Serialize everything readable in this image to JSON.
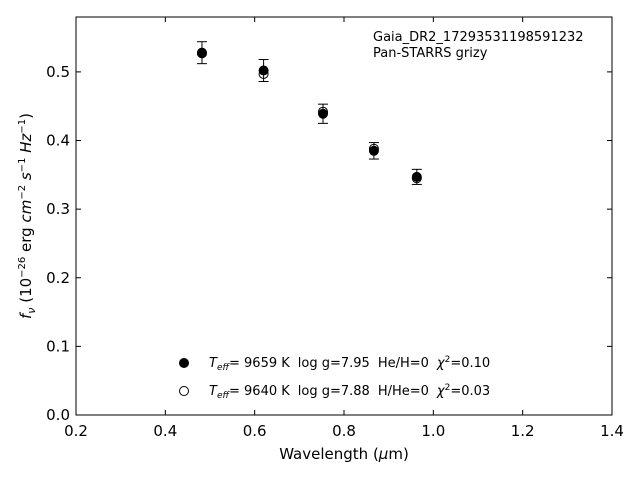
{
  "chart_data": {
    "type": "scatter",
    "title": "",
    "xlabel": "Wavelength (μm)",
    "ylabel": "f_ν (10^-26 erg cm^-2 s^-1 Hz^-1)",
    "xlim": [
      0.2,
      1.4
    ],
    "ylim": [
      0.0,
      0.58
    ],
    "xticks": [
      0.2,
      0.4,
      0.6,
      0.8,
      1.0,
      1.2,
      1.4
    ],
    "xtick_labels": [
      "0.2",
      "0.4",
      "0.6",
      "0.8",
      "1.0",
      "1.2",
      "1.4"
    ],
    "yticks": [
      0.0,
      0.1,
      0.2,
      0.3,
      0.4,
      0.5
    ],
    "ytick_labels": [
      "0.0",
      "0.1",
      "0.2",
      "0.3",
      "0.4",
      "0.5"
    ],
    "grid": false,
    "annotation": [
      "Gaia_DR2_17293531198591232",
      "Pan-STARRS grizy"
    ],
    "legend_position": "lower-center",
    "series": [
      {
        "marker": "filled-circle",
        "color": "#000000",
        "legend": {
          "teff": "9659 K",
          "logg": "log g=7.95",
          "comp": "He/H=0",
          "chi2": "=0.10"
        },
        "points": [
          {
            "x": 0.482,
            "y": 0.528,
            "err": 0.016
          },
          {
            "x": 0.62,
            "y": 0.502,
            "err": 0.016
          },
          {
            "x": 0.753,
            "y": 0.439,
            "err": 0.014
          },
          {
            "x": 0.867,
            "y": 0.385,
            "err": 0.012
          },
          {
            "x": 0.963,
            "y": 0.347,
            "err": 0.011
          }
        ]
      },
      {
        "marker": "open-circle",
        "color": "#000000",
        "legend": {
          "teff": "9640 K",
          "logg": "log g=7.88",
          "comp": "H/He=0",
          "chi2": "=0.03"
        },
        "points": [
          {
            "x": 0.482,
            "y": 0.527
          },
          {
            "x": 0.62,
            "y": 0.497
          },
          {
            "x": 0.753,
            "y": 0.442
          },
          {
            "x": 0.867,
            "y": 0.388
          },
          {
            "x": 0.963,
            "y": 0.345
          }
        ]
      }
    ]
  }
}
